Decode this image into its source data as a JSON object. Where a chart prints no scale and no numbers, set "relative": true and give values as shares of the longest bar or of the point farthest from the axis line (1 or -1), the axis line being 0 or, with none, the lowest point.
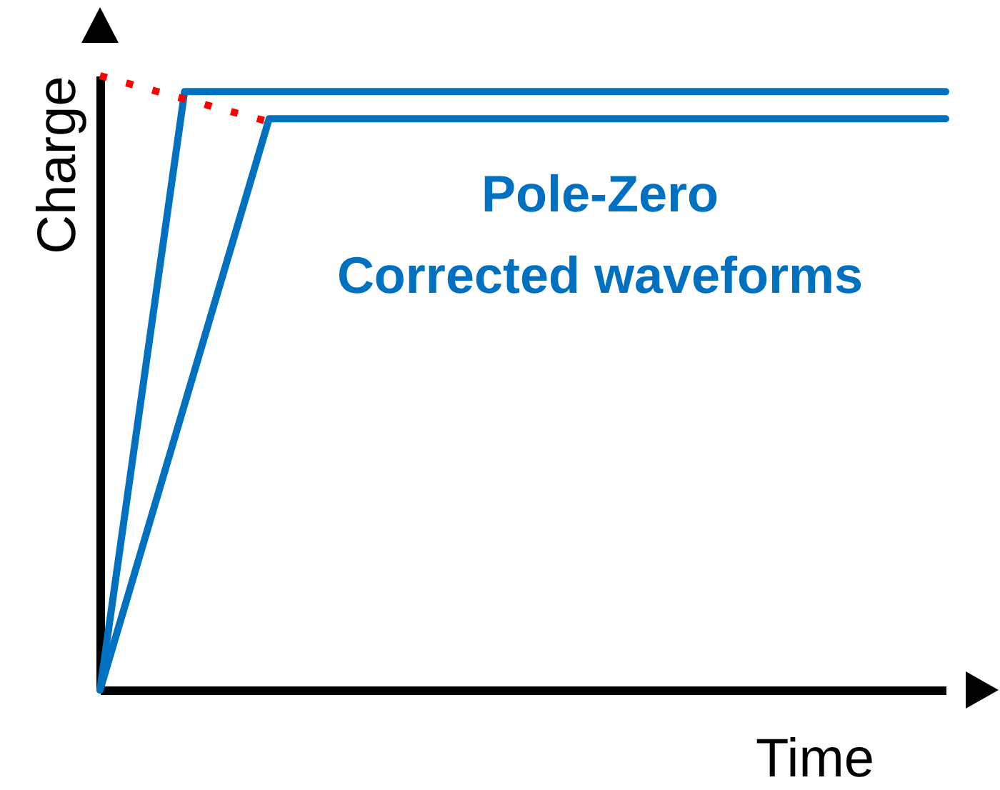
{
  "chart_data": {
    "type": "line",
    "relative": true,
    "xlabel": "Time",
    "ylabel": "Charge",
    "grid": false,
    "annotations": [
      "Pole-Zero\nCorrected waveforms"
    ],
    "categories": [
      null,
      null,
      null,
      null,
      null,
      null,
      null,
      null,
      null,
      null,
      null
    ],
    "series": [
      {
        "color": "#0070c0",
        "line_style": "solid",
        "values": [
          0,
          0.974,
          0.974,
          0.974,
          0.974,
          0.974,
          0.974,
          0.974,
          0.974,
          0.974,
          0.974
        ]
      },
      {
        "color": "#0070c0",
        "line_style": "solid",
        "values": [
          0,
          0.465,
          0.93,
          0.93,
          0.93,
          0.93,
          0.93,
          0.93,
          0.93,
          0.93,
          0.93
        ]
      },
      {
        "color": "#ff0000",
        "line_style": "dotted",
        "values": [
          1,
          0.962,
          0.925,
          null,
          null,
          null,
          null,
          null,
          null,
          null,
          null
        ]
      }
    ]
  }
}
